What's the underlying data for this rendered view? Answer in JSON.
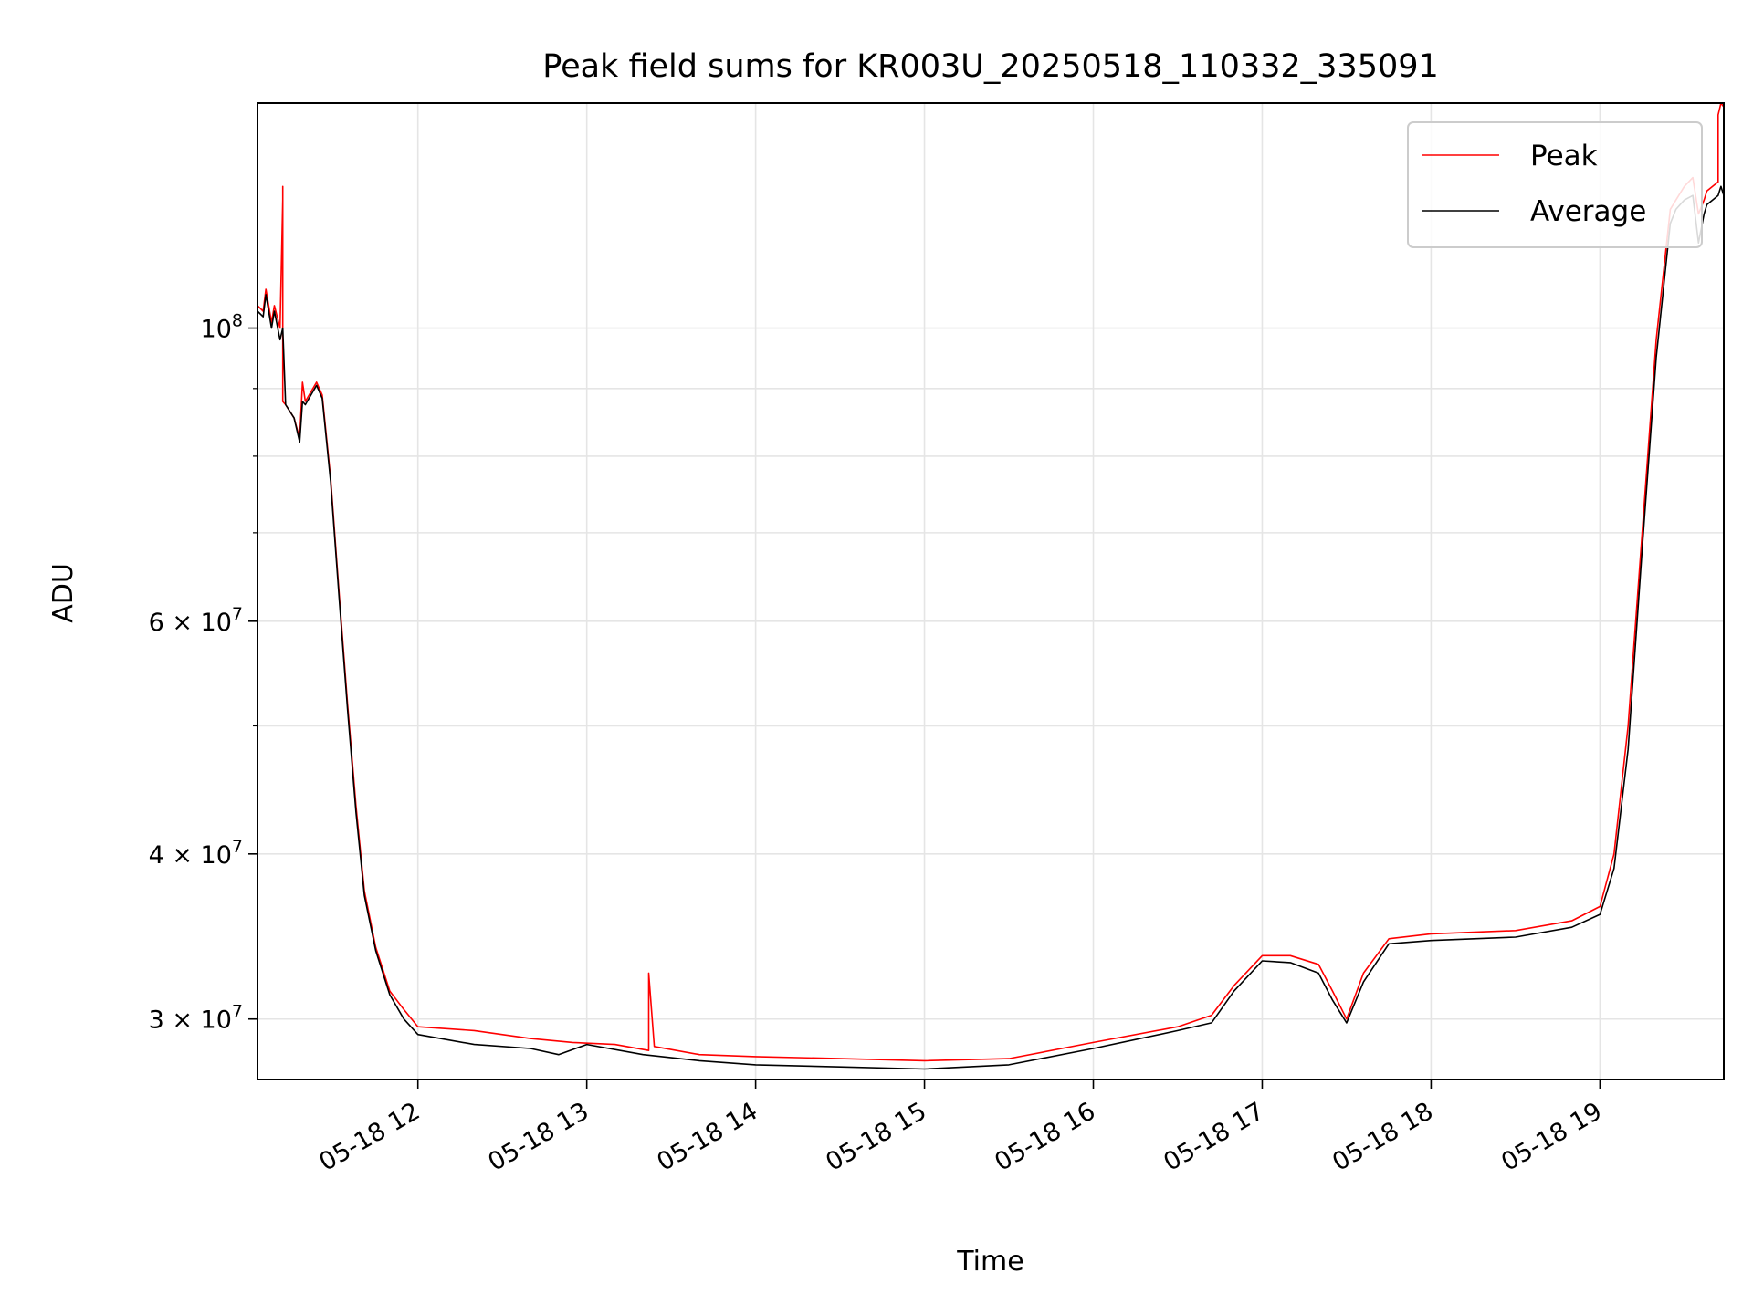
{
  "chart_data": {
    "type": "line",
    "title": "Peak field sums for KR003U_20250518_110332_335091",
    "xlabel": "Time",
    "ylabel": "ADU",
    "yscale": "log",
    "ylim": [
      27000000,
      148000000
    ],
    "xlim": [
      "2025-05-18 11:03",
      "2025-05-18 19:44"
    ],
    "grid": true,
    "legend": "upper right",
    "x_tick_labels": [
      "05-18 12",
      "05-18 13",
      "05-18 14",
      "05-18 15",
      "05-18 16",
      "05-18 17",
      "05-18 18",
      "05-18 19"
    ],
    "x_ticks": [
      "2025-05-18 12:00",
      "2025-05-18 13:00",
      "2025-05-18 14:00",
      "2025-05-18 15:00",
      "2025-05-18 16:00",
      "2025-05-18 17:00",
      "2025-05-18 18:00",
      "2025-05-18 19:00"
    ],
    "y_major_ticks": [
      {
        "value": 100000000,
        "base": "10",
        "exp": "8"
      },
      {
        "value": 60000000,
        "base": "6 × 10",
        "exp": "7"
      },
      {
        "value": 40000000,
        "base": "4 × 10",
        "exp": "7"
      },
      {
        "value": 30000000,
        "base": "3 × 10",
        "exp": "7"
      }
    ],
    "series": [
      {
        "name": "Peak",
        "color": "#ff0000",
        "x": [
          "2025-05-18 11:03",
          "2025-05-18 11:05",
          "2025-05-18 11:06",
          "2025-05-18 11:08",
          "2025-05-18 11:09",
          "2025-05-18 11:11",
          "2025-05-18 11:12",
          "2025-05-18 11:12",
          "2025-05-18 11:12",
          "2025-05-18 11:13",
          "2025-05-18 11:16",
          "2025-05-18 11:18",
          "2025-05-18 11:19",
          "2025-05-18 11:20",
          "2025-05-18 11:24",
          "2025-05-18 11:26",
          "2025-05-18 11:29",
          "2025-05-18 11:32",
          "2025-05-18 11:35",
          "2025-05-18 11:38",
          "2025-05-18 11:41",
          "2025-05-18 11:45",
          "2025-05-18 11:50",
          "2025-05-18 11:55",
          "2025-05-18 12:00",
          "2025-05-18 12:20",
          "2025-05-18 12:40",
          "2025-05-18 12:55",
          "2025-05-18 13:10",
          "2025-05-18 13:22",
          "2025-05-18 13:22",
          "2025-05-18 13:24",
          "2025-05-18 13:40",
          "2025-05-18 14:00",
          "2025-05-18 14:30",
          "2025-05-18 15:00",
          "2025-05-18 15:30",
          "2025-05-18 16:00",
          "2025-05-18 16:30",
          "2025-05-18 16:42",
          "2025-05-18 16:50",
          "2025-05-18 17:00",
          "2025-05-18 17:10",
          "2025-05-18 17:20",
          "2025-05-18 17:25",
          "2025-05-18 17:30",
          "2025-05-18 17:36",
          "2025-05-18 17:45",
          "2025-05-18 18:00",
          "2025-05-18 18:30",
          "2025-05-18 18:50",
          "2025-05-18 19:00",
          "2025-05-18 19:05",
          "2025-05-18 19:10",
          "2025-05-18 19:15",
          "2025-05-18 19:20",
          "2025-05-18 19:25",
          "2025-05-18 19:27",
          "2025-05-18 19:30",
          "2025-05-18 19:33",
          "2025-05-18 19:35",
          "2025-05-18 19:37",
          "2025-05-18 19:38",
          "2025-05-18 19:40",
          "2025-05-18 19:42",
          "2025-05-18 19:42",
          "2025-05-18 19:43",
          "2025-05-18 19:44"
        ],
        "y": [
          104000000,
          103000000,
          107000000,
          101000000,
          104000000,
          100000000,
          125000000,
          128000000,
          88000000,
          87500000,
          85500000,
          82500000,
          91000000,
          88000000,
          91000000,
          89000000,
          77000000,
          63000000,
          52000000,
          43500000,
          37500000,
          34000000,
          31500000,
          30500000,
          29600000,
          29400000,
          29000000,
          28800000,
          28700000,
          28400000,
          32500000,
          28600000,
          28200000,
          28100000,
          28000000,
          27900000,
          28000000,
          28800000,
          29600000,
          30200000,
          31800000,
          33500000,
          33500000,
          33000000,
          31500000,
          30000000,
          32500000,
          34500000,
          34800000,
          35000000,
          35600000,
          36500000,
          40000000,
          50000000,
          70000000,
          98000000,
          123000000,
          125000000,
          128000000,
          130000000,
          122000000,
          125000000,
          127000000,
          128000000,
          129000000,
          145000000,
          148000000,
          147000000
        ]
      },
      {
        "name": "Average",
        "color": "#000000",
        "x": [
          "2025-05-18 11:03",
          "2025-05-18 11:05",
          "2025-05-18 11:06",
          "2025-05-18 11:08",
          "2025-05-18 11:09",
          "2025-05-18 11:11",
          "2025-05-18 11:12",
          "2025-05-18 11:13",
          "2025-05-18 11:16",
          "2025-05-18 11:18",
          "2025-05-18 11:19",
          "2025-05-18 11:20",
          "2025-05-18 11:24",
          "2025-05-18 11:26",
          "2025-05-18 11:29",
          "2025-05-18 11:32",
          "2025-05-18 11:35",
          "2025-05-18 11:38",
          "2025-05-18 11:41",
          "2025-05-18 11:45",
          "2025-05-18 11:50",
          "2025-05-18 11:55",
          "2025-05-18 12:00",
          "2025-05-18 12:20",
          "2025-05-18 12:40",
          "2025-05-18 12:50",
          "2025-05-18 13:00",
          "2025-05-18 13:20",
          "2025-05-18 13:40",
          "2025-05-18 14:00",
          "2025-05-18 14:30",
          "2025-05-18 15:00",
          "2025-05-18 15:30",
          "2025-05-18 16:00",
          "2025-05-18 16:30",
          "2025-05-18 16:42",
          "2025-05-18 16:50",
          "2025-05-18 17:00",
          "2025-05-18 17:10",
          "2025-05-18 17:20",
          "2025-05-18 17:25",
          "2025-05-18 17:30",
          "2025-05-18 17:36",
          "2025-05-18 17:45",
          "2025-05-18 18:00",
          "2025-05-18 18:30",
          "2025-05-18 18:50",
          "2025-05-18 19:00",
          "2025-05-18 19:05",
          "2025-05-18 19:10",
          "2025-05-18 19:15",
          "2025-05-18 19:20",
          "2025-05-18 19:25",
          "2025-05-18 19:27",
          "2025-05-18 19:30",
          "2025-05-18 19:33",
          "2025-05-18 19:35",
          "2025-05-18 19:37",
          "2025-05-18 19:38",
          "2025-05-18 19:40",
          "2025-05-18 19:42",
          "2025-05-18 19:43",
          "2025-05-18 19:44"
        ],
        "y": [
          103000000,
          102000000,
          106000000,
          100000000,
          103000000,
          98000000,
          100000000,
          87500000,
          85500000,
          82000000,
          88000000,
          87500000,
          90500000,
          88500000,
          76500000,
          62500000,
          51500000,
          43000000,
          37200000,
          33800000,
          31300000,
          30000000,
          29200000,
          28700000,
          28500000,
          28200000,
          28700000,
          28200000,
          27900000,
          27700000,
          27600000,
          27500000,
          27700000,
          28500000,
          29400000,
          29800000,
          31500000,
          33200000,
          33100000,
          32500000,
          31000000,
          29800000,
          32000000,
          34200000,
          34400000,
          34600000,
          35200000,
          36000000,
          39000000,
          48000000,
          68000000,
          95000000,
          120000000,
          123000000,
          125000000,
          126000000,
          116000000,
          122000000,
          124000000,
          125000000,
          126000000,
          128000000,
          126000000
        ]
      }
    ]
  }
}
